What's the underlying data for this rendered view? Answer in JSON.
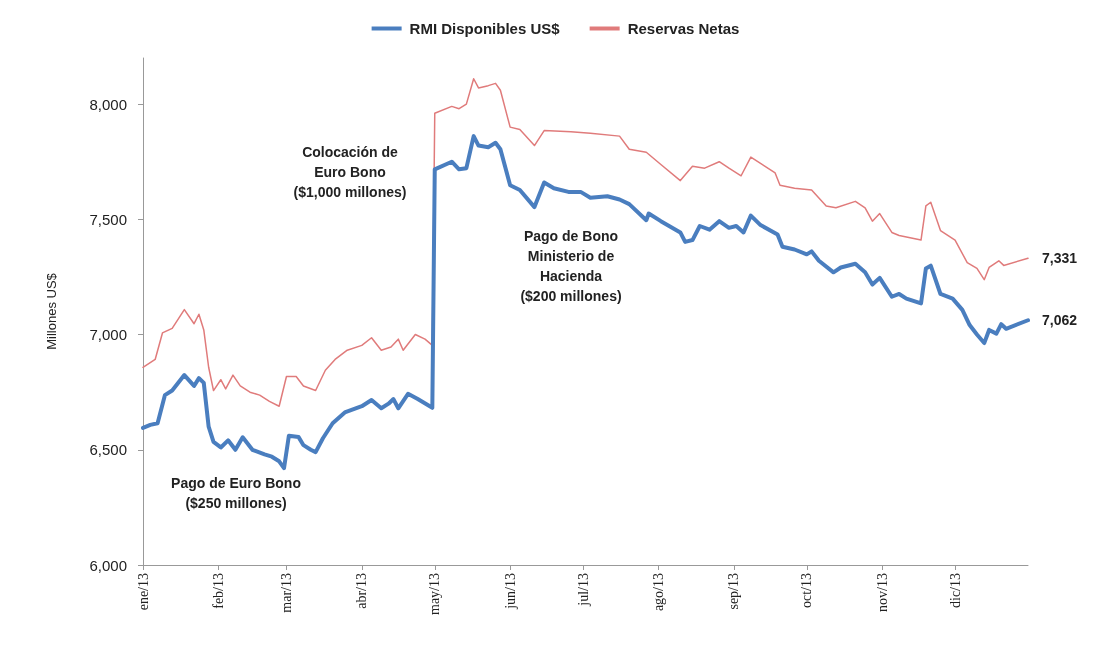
{
  "chart_data": {
    "type": "line",
    "ylabel": "Millones US$",
    "legend": "top",
    "grid": false,
    "marker": "none",
    "line_style": "solid",
    "xlim": [
      "2013-01-01",
      "2013-12-31"
    ],
    "xticks": [
      {
        "value": "2013-01-01",
        "label": "ene/13"
      },
      {
        "value": "2013-02-01",
        "label": "feb/13"
      },
      {
        "value": "2013-03-01",
        "label": "mar/13"
      },
      {
        "value": "2013-04-01",
        "label": "abr/13"
      },
      {
        "value": "2013-05-01",
        "label": "may/13"
      },
      {
        "value": "2013-06-01",
        "label": "jun/13"
      },
      {
        "value": "2013-07-01",
        "label": "jul/13"
      },
      {
        "value": "2013-08-01",
        "label": "ago/13"
      },
      {
        "value": "2013-09-01",
        "label": "sep/13"
      },
      {
        "value": "2013-10-01",
        "label": "oct/13"
      },
      {
        "value": "2013-11-01",
        "label": "nov/13"
      },
      {
        "value": "2013-12-01",
        "label": "dic/13"
      }
    ],
    "ylim": [
      6000,
      8200
    ],
    "yticks": [
      {
        "value": 6000,
        "label": "6,000"
      },
      {
        "value": 6500,
        "label": "6,500"
      },
      {
        "value": 7000,
        "label": "7,000"
      },
      {
        "value": 7500,
        "label": "7,500"
      },
      {
        "value": 8000,
        "label": "8,000"
      }
    ],
    "annotations": [
      "Colocación de\nEuro Bono\n($1,000 millones)",
      "Pago de Bono\nMinisterio de\nHacienda\n($200 millones)",
      "Pago de Euro Bono\n($250 millones)"
    ],
    "series": [
      {
        "name": "RMI Disponibles US$",
        "color": "#4a7ebf",
        "x": [
          "2013-01-01",
          "2013-01-04",
          "2013-01-07",
          "2013-01-10",
          "2013-01-13",
          "2013-01-18",
          "2013-01-22",
          "2013-01-24",
          "2013-01-26",
          "2013-01-28",
          "2013-01-30",
          "2013-02-02",
          "2013-02-05",
          "2013-02-08",
          "2013-02-11",
          "2013-02-15",
          "2013-02-20",
          "2013-02-23",
          "2013-02-26",
          "2013-02-28",
          "2013-03-02",
          "2013-03-06",
          "2013-03-08",
          "2013-03-11",
          "2013-03-13",
          "2013-03-16",
          "2013-03-20",
          "2013-03-25",
          "2013-04-01",
          "2013-04-05",
          "2013-04-09",
          "2013-04-12",
          "2013-04-14",
          "2013-04-16",
          "2013-04-20",
          "2013-04-24",
          "2013-04-30",
          "2013-05-01",
          "2013-05-08",
          "2013-05-11",
          "2013-05-14",
          "2013-05-17",
          "2013-05-19",
          "2013-05-23",
          "2013-05-26",
          "2013-05-28",
          "2013-06-01",
          "2013-06-05",
          "2013-06-11",
          "2013-06-15",
          "2013-06-19",
          "2013-06-25",
          "2013-06-30",
          "2013-07-04",
          "2013-07-11",
          "2013-07-16",
          "2013-07-20",
          "2013-07-27",
          "2013-07-28",
          "2013-08-02",
          "2013-08-10",
          "2013-08-12",
          "2013-08-15",
          "2013-08-18",
          "2013-08-22",
          "2013-08-26",
          "2013-08-30",
          "2013-09-02",
          "2013-09-05",
          "2013-09-08",
          "2013-09-12",
          "2013-09-19",
          "2013-09-21",
          "2013-09-26",
          "2013-10-01",
          "2013-10-03",
          "2013-10-06",
          "2013-10-12",
          "2013-10-15",
          "2013-10-21",
          "2013-10-25",
          "2013-10-28",
          "2013-10-31",
          "2013-11-05",
          "2013-11-08",
          "2013-11-11",
          "2013-11-17",
          "2013-11-19",
          "2013-11-21",
          "2013-11-25",
          "2013-11-30",
          "2013-12-04",
          "2013-12-07",
          "2013-12-10",
          "2013-12-13",
          "2013-12-15",
          "2013-12-18",
          "2013-12-20",
          "2013-12-22",
          "2013-12-31"
        ],
        "values": [
          6595,
          6608,
          6615,
          6737,
          6757,
          6824,
          6777,
          6811,
          6790,
          6600,
          6534,
          6510,
          6541,
          6500,
          6554,
          6500,
          6480,
          6470,
          6450,
          6420,
          6561,
          6555,
          6520,
          6500,
          6490,
          6550,
          6615,
          6662,
          6689,
          6716,
          6680,
          6700,
          6720,
          6680,
          6743,
          6720,
          6682,
          7717,
          7750,
          7717,
          7722,
          7861,
          7820,
          7813,
          7832,
          7804,
          7648,
          7627,
          7553,
          7660,
          7635,
          7619,
          7619,
          7594,
          7600,
          7586,
          7566,
          7496,
          7525,
          7492,
          7443,
          7402,
          7410,
          7471,
          7455,
          7492,
          7463,
          7471,
          7443,
          7516,
          7475,
          7434,
          7381,
          7369,
          7348,
          7361,
          7320,
          7270,
          7291,
          7307,
          7270,
          7217,
          7246,
          7164,
          7176,
          7156,
          7135,
          7287,
          7299,
          7176,
          7156,
          7107,
          7041,
          7000,
          6963,
          7020,
          7004,
          7045,
          7025,
          7062
        ],
        "value_labels": [
          null,
          null,
          null,
          null,
          null,
          null,
          null,
          null,
          null,
          null,
          null,
          null,
          null,
          null,
          null,
          null,
          null,
          null,
          null,
          null,
          null,
          null,
          null,
          null,
          null,
          null,
          null,
          null,
          null,
          null,
          null,
          null,
          null,
          null,
          null,
          null,
          null,
          null,
          null,
          null,
          null,
          null,
          null,
          null,
          null,
          null,
          null,
          null,
          null,
          null,
          null,
          null,
          null,
          null,
          null,
          null,
          null,
          null,
          null,
          null,
          null,
          null,
          null,
          null,
          null,
          null,
          null,
          null,
          null,
          null,
          null,
          null,
          null,
          null,
          null,
          null,
          null,
          null,
          null,
          null,
          null,
          null,
          null,
          null,
          null,
          null,
          null,
          null,
          null,
          null,
          null,
          null,
          null,
          null,
          null,
          null,
          null,
          null,
          null,
          "7,062"
        ]
      },
      {
        "name": "Reservas Netas",
        "color": "#e07b7b",
        "x": [
          "2013-01-01",
          "2013-01-06",
          "2013-01-09",
          "2013-01-13",
          "2013-01-18",
          "2013-01-22",
          "2013-01-24",
          "2013-01-26",
          "2013-01-28",
          "2013-01-30",
          "2013-02-02",
          "2013-02-04",
          "2013-02-07",
          "2013-02-10",
          "2013-02-14",
          "2013-02-18",
          "2013-02-22",
          "2013-02-26",
          "2013-03-01",
          "2013-03-05",
          "2013-03-08",
          "2013-03-13",
          "2013-03-17",
          "2013-03-21",
          "2013-03-26",
          "2013-04-01",
          "2013-04-05",
          "2013-04-09",
          "2013-04-13",
          "2013-04-16",
          "2013-04-18",
          "2013-04-23",
          "2013-04-27",
          "2013-04-30",
          "2013-05-01",
          "2013-05-08",
          "2013-05-11",
          "2013-05-14",
          "2013-05-17",
          "2013-05-19",
          "2013-05-23",
          "2013-05-26",
          "2013-05-28",
          "2013-06-01",
          "2013-06-05",
          "2013-06-11",
          "2013-06-15",
          "2013-06-26",
          "2013-07-04",
          "2013-07-16",
          "2013-07-20",
          "2013-07-27",
          "2013-08-02",
          "2013-08-10",
          "2013-08-15",
          "2013-08-20",
          "2013-08-26",
          "2013-08-30",
          "2013-09-04",
          "2013-09-08",
          "2013-09-18",
          "2013-09-20",
          "2013-09-26",
          "2013-10-03",
          "2013-10-09",
          "2013-10-13",
          "2013-10-21",
          "2013-10-25",
          "2013-10-28",
          "2013-10-31",
          "2013-11-05",
          "2013-11-08",
          "2013-11-17",
          "2013-11-19",
          "2013-11-21",
          "2013-11-25",
          "2013-12-01",
          "2013-12-06",
          "2013-12-10",
          "2013-12-13",
          "2013-12-15",
          "2013-12-19",
          "2013-12-21",
          "2013-12-31"
        ],
        "values": [
          6858,
          6892,
          7007,
          7027,
          7108,
          7047,
          7088,
          7020,
          6858,
          6757,
          6804,
          6764,
          6824,
          6777,
          6750,
          6737,
          6710,
          6689,
          6818,
          6818,
          6777,
          6757,
          6845,
          6892,
          6932,
          6953,
          6986,
          6932,
          6946,
          6980,
          6932,
          7000,
          6980,
          6953,
          7960,
          7990,
          7980,
          8000,
          8110,
          8070,
          8080,
          8090,
          8060,
          7900,
          7890,
          7820,
          7885,
          7880,
          7873,
          7861,
          7804,
          7791,
          7738,
          7668,
          7730,
          7722,
          7750,
          7722,
          7689,
          7770,
          7701,
          7648,
          7635,
          7627,
          7558,
          7550,
          7578,
          7550,
          7492,
          7525,
          7443,
          7430,
          7410,
          7558,
          7574,
          7451,
          7410,
          7312,
          7287,
          7238,
          7291,
          7320,
          7300,
          7331
        ],
        "value_labels": [
          null,
          null,
          null,
          null,
          null,
          null,
          null,
          null,
          null,
          null,
          null,
          null,
          null,
          null,
          null,
          null,
          null,
          null,
          null,
          null,
          null,
          null,
          null,
          null,
          null,
          null,
          null,
          null,
          null,
          null,
          null,
          null,
          null,
          null,
          null,
          null,
          null,
          null,
          null,
          null,
          null,
          null,
          null,
          null,
          null,
          null,
          null,
          null,
          null,
          null,
          null,
          null,
          null,
          null,
          null,
          null,
          null,
          null,
          null,
          null,
          null,
          null,
          null,
          null,
          null,
          null,
          null,
          null,
          null,
          null,
          null,
          null,
          null,
          null,
          null,
          null,
          null,
          null,
          null,
          null,
          null,
          null,
          null,
          "7,331"
        ]
      }
    ]
  }
}
